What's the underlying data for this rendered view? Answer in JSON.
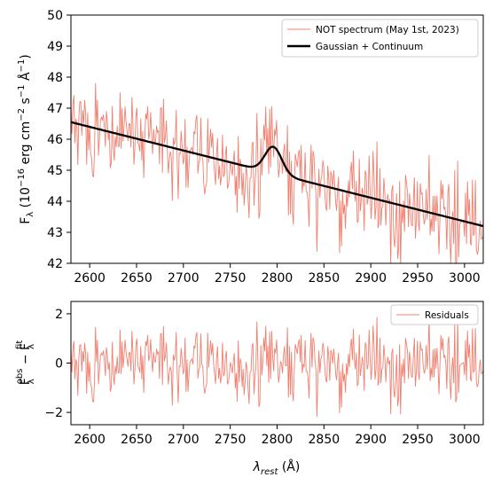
{
  "colors": {
    "spectrum": "#f08070",
    "model": "#000000",
    "axes": "#000000",
    "background": "#ffffff"
  },
  "chart_data": [
    {
      "type": "line",
      "panel": "top",
      "xlim": [
        2580,
        3020
      ],
      "ylim": [
        42,
        50
      ],
      "xticks": [
        2600,
        2650,
        2700,
        2750,
        2800,
        2850,
        2900,
        2950,
        3000
      ],
      "yticks": [
        42,
        43,
        44,
        45,
        46,
        47,
        48,
        49,
        50
      ],
      "ylabel": "F_λ (10^-16 erg cm^-2 s^-1 Å^-1)",
      "ylabel_parts": {
        "symbol": "F",
        "symbol_sub": "λ",
        "open": " (10",
        "exp1": "−16",
        "unit1": " erg cm",
        "exp2": "−2",
        "unit2": " s",
        "exp3": "−1",
        "unit3": " Å",
        "exp4": "−1",
        "close": ")"
      },
      "legend_position": "upper-right",
      "series": [
        {
          "name": "NOT spectrum (May 1st, 2023)",
          "style": "thin-line",
          "color": "#f08070",
          "noise_sigma": 0.75,
          "x_range": [
            2580,
            3020
          ],
          "n_points": 420
        },
        {
          "name": "Gaussian + Continuum",
          "style": "thick-line",
          "color": "#000000",
          "continuum": {
            "x": [
              2580,
              3020
            ],
            "y": [
              46.55,
              43.2
            ]
          },
          "gaussian": {
            "center": 2796,
            "amplitude": 0.85,
            "sigma": 9
          }
        }
      ]
    },
    {
      "type": "line",
      "panel": "bottom",
      "xlim": [
        2580,
        3020
      ],
      "ylim": [
        -2.5,
        2.5
      ],
      "xticks": [
        2600,
        2650,
        2700,
        2750,
        2800,
        2850,
        2900,
        2950,
        3000
      ],
      "yticks": [
        -2,
        0,
        2
      ],
      "xlabel": "λ_rest (Å)",
      "xlabel_parts": {
        "symbol": "λ",
        "sub": "rest",
        "unit": " (Å)"
      },
      "ylabel": "F_λ^obs − F_λ^fit",
      "ylabel_parts": {
        "f1": "F",
        "sub1": "λ",
        "sup1": "obs",
        "minus": " − ",
        "f2": "F",
        "sub2": "λ",
        "sup2": "fit"
      },
      "legend_position": "upper-right",
      "series": [
        {
          "name": "Residuals",
          "color": "#f08070",
          "mean": 0,
          "noise_sigma": 0.75
        }
      ]
    }
  ]
}
